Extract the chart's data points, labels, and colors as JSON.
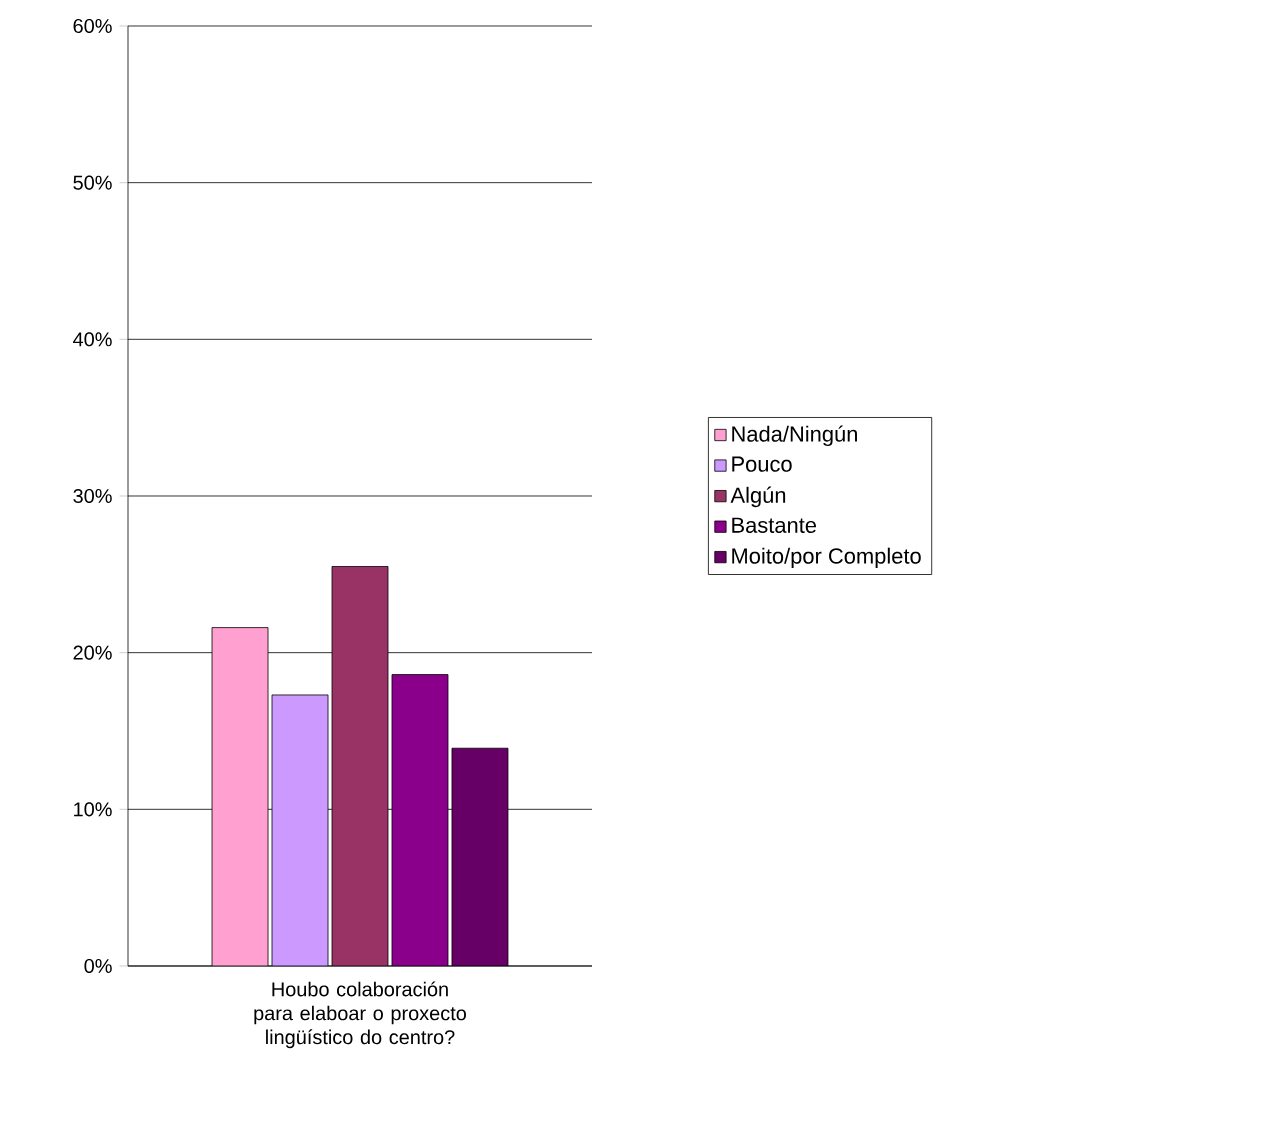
{
  "chart_data": {
    "type": "bar",
    "categories": [
      "Houbo colaboración para elaboar o proxecto lingüístico do centro?"
    ],
    "series": [
      {
        "name": "Nada/Ningún",
        "color": "#ffa0d0",
        "values": [
          21.6
        ]
      },
      {
        "name": "Pouco",
        "color": "#cc99ff",
        "values": [
          17.3
        ]
      },
      {
        "name": "Algún",
        "color": "#993366",
        "values": [
          25.5
        ]
      },
      {
        "name": "Bastante",
        "color": "#8b008b",
        "values": [
          18.6
        ]
      },
      {
        "name": "Moito/por Completo",
        "color": "#660066",
        "values": [
          13.9
        ]
      }
    ],
    "ylim": [
      0,
      60
    ],
    "yticks": [
      {
        "value": 0,
        "label": "0%"
      },
      {
        "value": 10,
        "label": "10%"
      },
      {
        "value": 20,
        "label": "20%"
      },
      {
        "value": 30,
        "label": "30%"
      },
      {
        "value": 40,
        "label": "40%"
      },
      {
        "value": 50,
        "label": "50%"
      },
      {
        "value": 60,
        "label": "60%"
      }
    ],
    "grid": "y",
    "legend": "right"
  }
}
